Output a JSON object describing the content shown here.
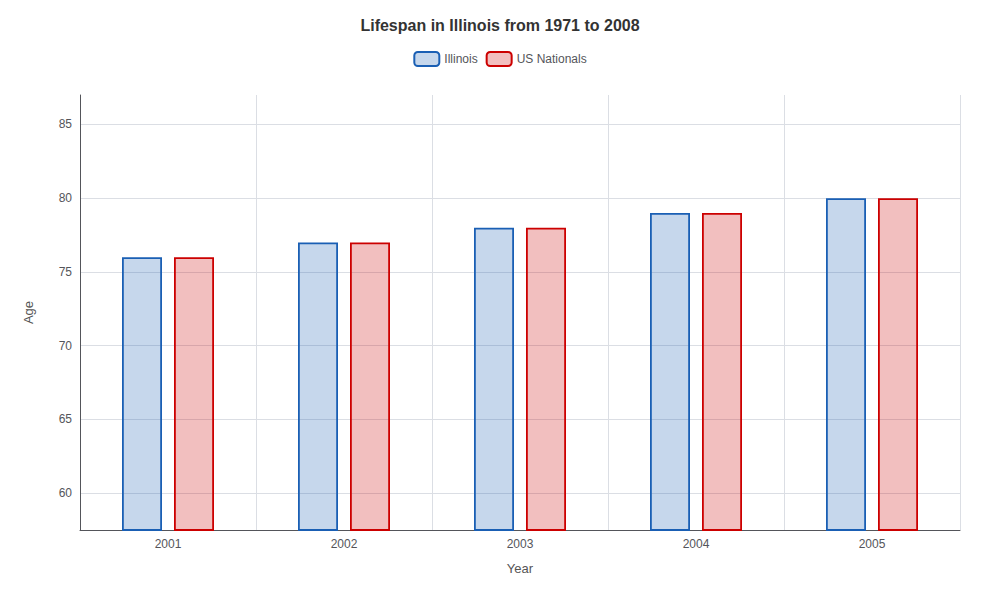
{
  "chart_data": {
    "type": "bar",
    "title": "Lifespan in Illinois from 1971 to 2008",
    "xlabel": "Year",
    "ylabel": "Age",
    "categories": [
      "2001",
      "2002",
      "2003",
      "2004",
      "2005"
    ],
    "series": [
      {
        "name": "Illinois",
        "color": "#1a5fb4",
        "values": [
          76,
          77,
          78,
          79,
          80
        ]
      },
      {
        "name": "US Nationals",
        "color": "#cc0000",
        "values": [
          76,
          77,
          78,
          79,
          80
        ]
      }
    ],
    "ylim": [
      57.5,
      87
    ],
    "yticks": [
      60,
      65,
      70,
      75,
      80,
      85
    ],
    "grid": true,
    "legend": "top"
  }
}
